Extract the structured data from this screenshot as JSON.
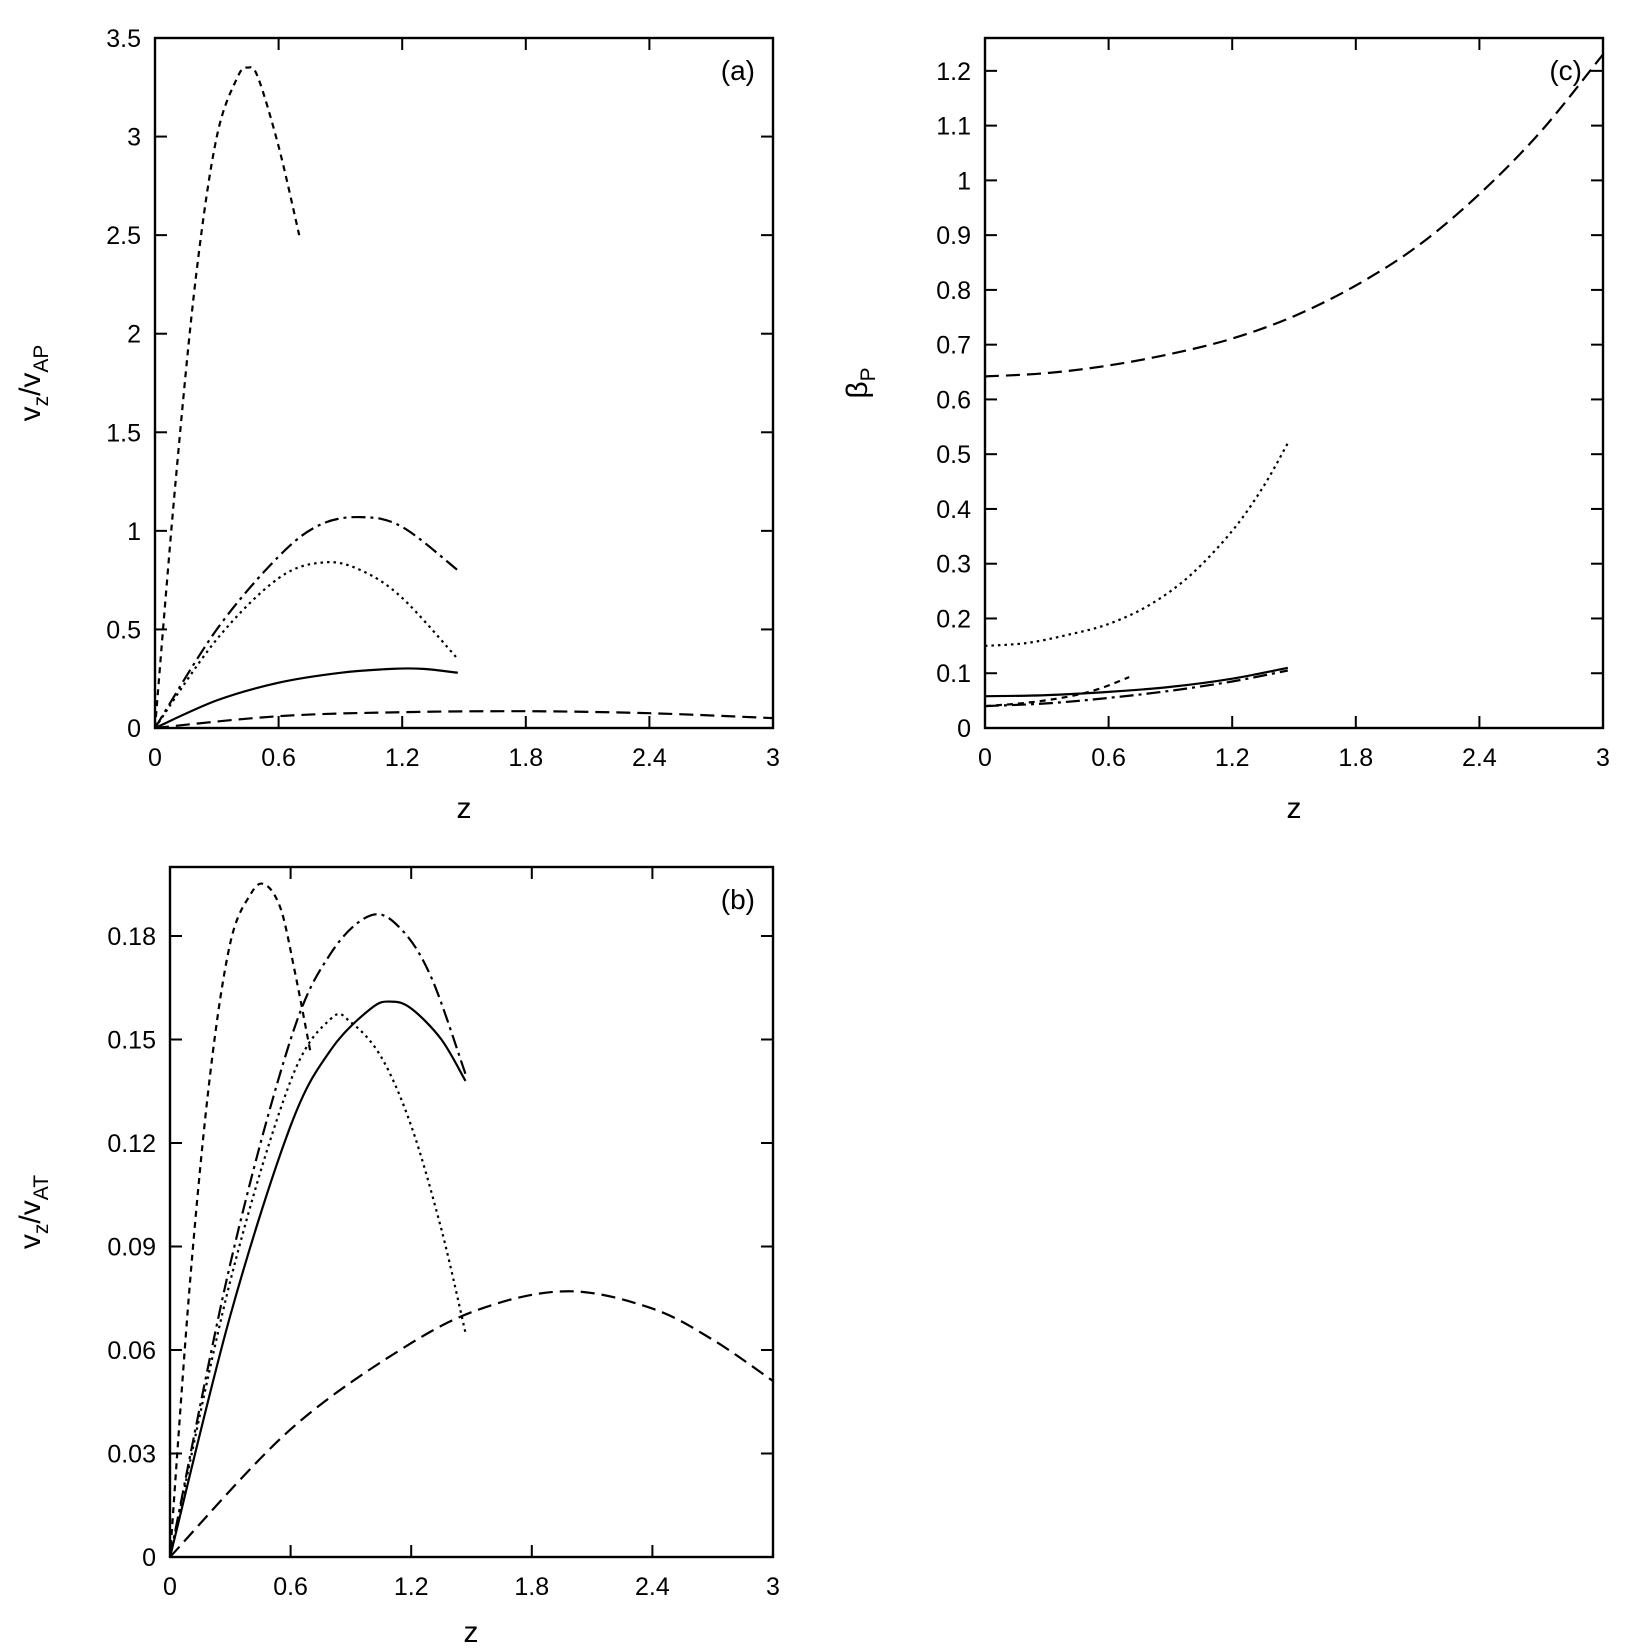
{
  "chart_data": [
    {
      "id": "a",
      "type": "line",
      "panel_label": "(a)",
      "xlabel": "z",
      "ylabel_main": "v",
      "ylabel_sub1": "z",
      "ylabel_sep": "/v",
      "ylabel_sub2": "AP",
      "xlim": [
        0,
        3
      ],
      "ylim": [
        0,
        3.5
      ],
      "xticks": [
        "0",
        "0.6",
        "1.2",
        "1.8",
        "2.4",
        "3"
      ],
      "xtick_values": [
        0,
        0.6,
        1.2,
        1.8,
        2.4,
        3
      ],
      "yticks": [
        "0",
        "0.5",
        "1",
        "1.5",
        "2",
        "2.5",
        "3",
        "3.5"
      ],
      "ytick_values": [
        0,
        0.5,
        1,
        1.5,
        2,
        2.5,
        3,
        3.5
      ],
      "series": [
        {
          "style": "solid",
          "x": [
            0,
            0.3,
            0.6,
            0.9,
            1.15,
            1.3,
            1.47
          ],
          "y": [
            0,
            0.14,
            0.23,
            0.28,
            0.3,
            0.3,
            0.28
          ]
        },
        {
          "style": "dashed",
          "x": [
            0,
            0.6,
            1.2,
            1.8,
            2.4,
            3.0
          ],
          "y": [
            0,
            0.06,
            0.08,
            0.085,
            0.075,
            0.05
          ]
        },
        {
          "style": "short-dashed",
          "x": [
            0,
            0.1,
            0.2,
            0.3,
            0.4,
            0.45,
            0.5,
            0.6,
            0.7
          ],
          "y": [
            0,
            1.25,
            2.3,
            3.0,
            3.3,
            3.35,
            3.3,
            2.95,
            2.5
          ]
        },
        {
          "style": "dotted",
          "x": [
            0,
            0.3,
            0.6,
            0.82,
            1.0,
            1.2,
            1.47
          ],
          "y": [
            0,
            0.45,
            0.76,
            0.84,
            0.8,
            0.66,
            0.35
          ]
        },
        {
          "style": "dash-dot",
          "x": [
            0,
            0.3,
            0.6,
            0.8,
            1.0,
            1.2,
            1.47
          ],
          "y": [
            0,
            0.5,
            0.87,
            1.03,
            1.07,
            1.02,
            0.8
          ]
        }
      ]
    },
    {
      "id": "b",
      "type": "line",
      "panel_label": "(b)",
      "xlabel": "z",
      "ylabel_main": "v",
      "ylabel_sub1": "z",
      "ylabel_sep": "/v",
      "ylabel_sub2": "AT",
      "xlim": [
        0,
        3
      ],
      "ylim": [
        0,
        0.2
      ],
      "xticks": [
        "0",
        "0.6",
        "1.2",
        "1.8",
        "2.4",
        "3"
      ],
      "xtick_values": [
        0,
        0.6,
        1.2,
        1.8,
        2.4,
        3
      ],
      "yticks": [
        "0",
        "0.03",
        "0.06",
        "0.09",
        "0.12",
        "0.15",
        "0.18"
      ],
      "ytick_values": [
        0,
        0.03,
        0.06,
        0.09,
        0.12,
        0.15,
        0.18
      ],
      "series": [
        {
          "style": "solid",
          "x": [
            0,
            0.3,
            0.6,
            0.8,
            1.0,
            1.1,
            1.2,
            1.35,
            1.47
          ],
          "y": [
            0,
            0.07,
            0.125,
            0.147,
            0.159,
            0.161,
            0.159,
            0.15,
            0.138
          ]
        },
        {
          "style": "dashed",
          "x": [
            0,
            0.6,
            1.2,
            1.6,
            2.0,
            2.4,
            2.7,
            3.0
          ],
          "y": [
            0,
            0.037,
            0.062,
            0.073,
            0.077,
            0.072,
            0.063,
            0.051
          ]
        },
        {
          "style": "short-dashed",
          "x": [
            0,
            0.1,
            0.2,
            0.3,
            0.4,
            0.47,
            0.55,
            0.62,
            0.7
          ],
          "y": [
            0,
            0.08,
            0.14,
            0.178,
            0.192,
            0.195,
            0.188,
            0.17,
            0.146
          ]
        },
        {
          "style": "dotted",
          "x": [
            0,
            0.3,
            0.6,
            0.8,
            0.9,
            1.05,
            1.2,
            1.35,
            1.47
          ],
          "y": [
            0,
            0.08,
            0.138,
            0.156,
            0.155,
            0.145,
            0.125,
            0.095,
            0.065
          ]
        },
        {
          "style": "dash-dot",
          "x": [
            0,
            0.3,
            0.6,
            0.8,
            1.0,
            1.15,
            1.3,
            1.47
          ],
          "y": [
            0,
            0.085,
            0.15,
            0.175,
            0.186,
            0.182,
            0.168,
            0.14
          ]
        }
      ]
    },
    {
      "id": "c",
      "type": "line",
      "panel_label": "(c)",
      "xlabel": "z",
      "ylabel_main": "β",
      "ylabel_sub1": "P",
      "ylabel_sep": "",
      "ylabel_sub2": "",
      "xlim": [
        0,
        3
      ],
      "ylim": [
        0,
        1.26
      ],
      "xticks": [
        "0",
        "0.6",
        "1.2",
        "1.8",
        "2.4",
        "3"
      ],
      "xtick_values": [
        0,
        0.6,
        1.2,
        1.8,
        2.4,
        3
      ],
      "yticks": [
        "0",
        "0.1",
        "0.2",
        "0.3",
        "0.4",
        "0.5",
        "0.6",
        "0.7",
        "0.8",
        "0.9",
        "1",
        "1.1",
        "1.2"
      ],
      "ytick_values": [
        0,
        0.1,
        0.2,
        0.3,
        0.4,
        0.5,
        0.6,
        0.7,
        0.8,
        0.9,
        1,
        1.1,
        1.2
      ],
      "series": [
        {
          "style": "solid",
          "x": [
            0,
            0.3,
            0.6,
            0.9,
            1.2,
            1.47
          ],
          "y": [
            0.058,
            0.06,
            0.066,
            0.075,
            0.09,
            0.11
          ]
        },
        {
          "style": "dashed",
          "x": [
            0,
            0.3,
            0.6,
            0.9,
            1.2,
            1.5,
            1.8,
            2.1,
            2.4,
            2.7,
            3.0
          ],
          "y": [
            0.642,
            0.648,
            0.662,
            0.683,
            0.711,
            0.752,
            0.808,
            0.88,
            0.975,
            1.09,
            1.23
          ]
        },
        {
          "style": "short-dashed",
          "x": [
            0,
            0.2,
            0.4,
            0.55,
            0.7
          ],
          "y": [
            0.04,
            0.046,
            0.057,
            0.071,
            0.093
          ]
        },
        {
          "style": "dotted",
          "x": [
            0,
            0.2,
            0.4,
            0.6,
            0.8,
            1.0,
            1.2,
            1.35,
            1.47
          ],
          "y": [
            0.15,
            0.155,
            0.17,
            0.19,
            0.225,
            0.28,
            0.36,
            0.44,
            0.52
          ]
        },
        {
          "style": "dash-dot",
          "x": [
            0,
            0.3,
            0.6,
            0.9,
            1.2,
            1.47
          ],
          "y": [
            0.04,
            0.045,
            0.055,
            0.068,
            0.085,
            0.105
          ]
        }
      ]
    }
  ]
}
